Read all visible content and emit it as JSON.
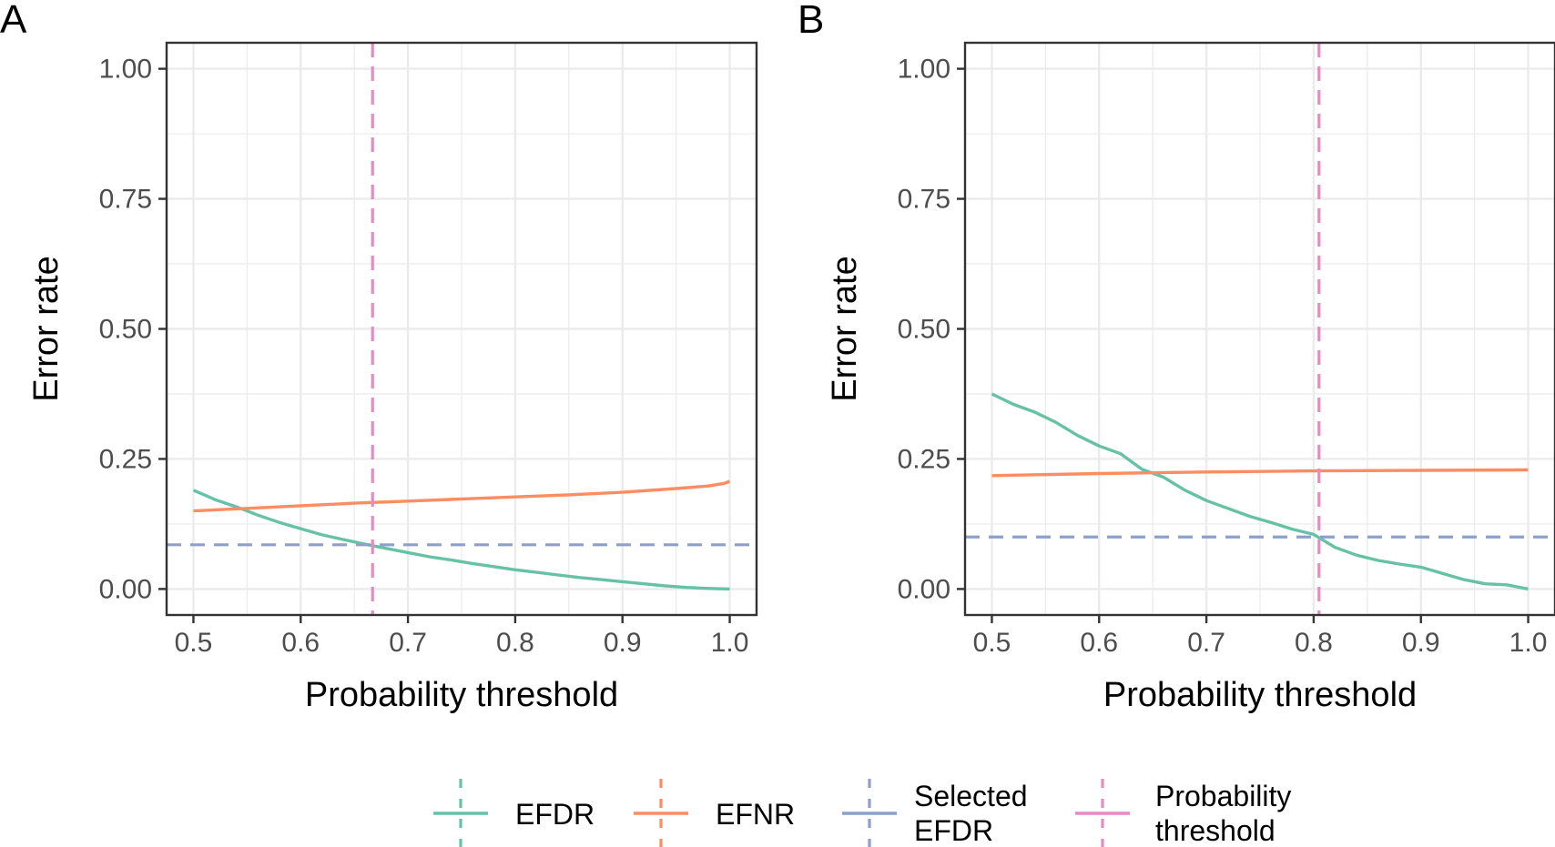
{
  "chart_data": [
    {
      "panel": "A",
      "type": "line",
      "xlabel": "Probability threshold",
      "ylabel": "Error rate",
      "xlim": [
        0.475,
        1.025
      ],
      "ylim": [
        -0.05,
        1.05
      ],
      "xticks": [
        0.5,
        0.6,
        0.7,
        0.8,
        0.9,
        1.0
      ],
      "xtick_labels": [
        "0.5",
        "0.6",
        "0.7",
        "0.8",
        "0.9",
        "1.0"
      ],
      "yticks": [
        0.0,
        0.25,
        0.5,
        0.75,
        1.0
      ],
      "ytick_labels": [
        "0.00",
        "0.25",
        "0.50",
        "0.75",
        "1.00"
      ],
      "grid": true,
      "series": [
        {
          "name": "EFDR",
          "color": "#66c2a5",
          "x": [
            0.5,
            0.52,
            0.54,
            0.56,
            0.58,
            0.6,
            0.62,
            0.64,
            0.66,
            0.68,
            0.7,
            0.72,
            0.74,
            0.76,
            0.78,
            0.8,
            0.82,
            0.84,
            0.86,
            0.88,
            0.9,
            0.92,
            0.94,
            0.96,
            0.98,
            1.0
          ],
          "y": [
            0.19,
            0.172,
            0.158,
            0.142,
            0.128,
            0.116,
            0.104,
            0.095,
            0.086,
            0.078,
            0.07,
            0.062,
            0.056,
            0.049,
            0.043,
            0.037,
            0.032,
            0.027,
            0.022,
            0.018,
            0.014,
            0.01,
            0.006,
            0.003,
            0.001,
            0.0
          ]
        },
        {
          "name": "EFNR",
          "color": "#fc8d62",
          "x": [
            0.5,
            0.55,
            0.6,
            0.65,
            0.7,
            0.75,
            0.8,
            0.85,
            0.9,
            0.95,
            0.98,
            0.995,
            1.0
          ],
          "y": [
            0.15,
            0.155,
            0.16,
            0.165,
            0.169,
            0.173,
            0.177,
            0.181,
            0.186,
            0.193,
            0.198,
            0.203,
            0.207
          ]
        }
      ],
      "selected_efdr": {
        "name": "Selected EFDR",
        "color": "#8da0cb",
        "value": 0.085
      },
      "probability_threshold": {
        "name": "Probability threshold",
        "color": "#e78ac3",
        "value": 0.667
      }
    },
    {
      "panel": "B",
      "type": "line",
      "xlabel": "Probability threshold",
      "ylabel": "Error rate",
      "xlim": [
        0.475,
        1.025
      ],
      "ylim": [
        -0.05,
        1.05
      ],
      "xticks": [
        0.5,
        0.6,
        0.7,
        0.8,
        0.9,
        1.0
      ],
      "xtick_labels": [
        "0.5",
        "0.6",
        "0.7",
        "0.8",
        "0.9",
        "1.0"
      ],
      "yticks": [
        0.0,
        0.25,
        0.5,
        0.75,
        1.0
      ],
      "ytick_labels": [
        "0.00",
        "0.25",
        "0.50",
        "0.75",
        "1.00"
      ],
      "grid": true,
      "series": [
        {
          "name": "EFDR",
          "color": "#66c2a5",
          "x": [
            0.5,
            0.52,
            0.54,
            0.56,
            0.58,
            0.6,
            0.62,
            0.64,
            0.66,
            0.68,
            0.7,
            0.72,
            0.74,
            0.76,
            0.78,
            0.8,
            0.82,
            0.84,
            0.86,
            0.88,
            0.9,
            0.92,
            0.94,
            0.96,
            0.98,
            1.0
          ],
          "y": [
            0.375,
            0.355,
            0.34,
            0.32,
            0.295,
            0.275,
            0.26,
            0.23,
            0.215,
            0.19,
            0.17,
            0.155,
            0.14,
            0.128,
            0.115,
            0.105,
            0.08,
            0.065,
            0.055,
            0.048,
            0.042,
            0.03,
            0.018,
            0.01,
            0.008,
            0.0
          ]
        },
        {
          "name": "EFNR",
          "color": "#fc8d62",
          "x": [
            0.5,
            0.6,
            0.7,
            0.8,
            0.9,
            1.0
          ],
          "y": [
            0.218,
            0.222,
            0.225,
            0.227,
            0.228,
            0.229
          ]
        }
      ],
      "selected_efdr": {
        "name": "Selected EFDR",
        "color": "#8da0cb",
        "value": 0.1
      },
      "probability_threshold": {
        "name": "Probability threshold",
        "color": "#e78ac3",
        "value": 0.805
      }
    }
  ],
  "legend": {
    "placement": "bottom",
    "items": [
      {
        "lines": [
          "EFDR"
        ],
        "color": "#66c2a5"
      },
      {
        "lines": [
          "EFNR"
        ],
        "color": "#fc8d62"
      },
      {
        "lines": [
          "Selected",
          "EFDR"
        ],
        "color": "#8da0cb"
      },
      {
        "lines": [
          "Probability",
          "threshold"
        ],
        "color": "#e78ac3"
      }
    ]
  }
}
